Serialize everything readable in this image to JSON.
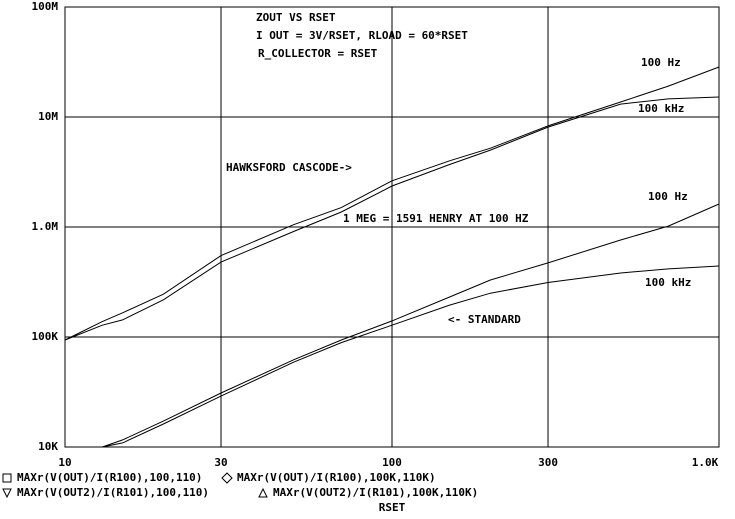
{
  "chart_data": {
    "type": "line",
    "x_label": "RSET",
    "xscale": "log",
    "yscale": "log",
    "grid": true,
    "xlim": [
      10,
      1000
    ],
    "xticks": [
      10,
      30,
      100,
      300,
      {
        "value": 1000,
        "label": "1.0K"
      }
    ],
    "ylim": [
      10000,
      100000000
    ],
    "yticks": [
      {
        "value": 10000,
        "label": "10K"
      },
      {
        "value": 100000,
        "label": "100K"
      },
      {
        "value": 1000000,
        "label": "1.0M"
      },
      {
        "value": 10000000,
        "label": "10M"
      },
      {
        "value": 100000000,
        "label": "100M"
      }
    ],
    "x": [
      10,
      13,
      15,
      20,
      30,
      50,
      70,
      100,
      150,
      200,
      300,
      500,
      700,
      1000
    ],
    "series": [
      {
        "name": "MAXr(V(OUT)/I(R100),100,110)",
        "color": "#000000",
        "values": [
          94000,
          138000,
          166000,
          245000,
          550000,
          1050000,
          1500000,
          2630000,
          4000000,
          5200000,
          8300000,
          13700000,
          19100000,
          28500000
        ]
      },
      {
        "name": "MAXr(V(OUT)/I(R100),100K,110K)",
        "color": "#000000",
        "values": [
          94000,
          128000,
          143000,
          218000,
          480000,
          910000,
          1370000,
          2360000,
          3700000,
          5000000,
          8100000,
          13100000,
          14600000,
          15200000
        ]
      },
      {
        "name": "MAXr(V(OUT2)/I(R101),100,110)",
        "color": "#000000",
        "values": [
          null,
          10000,
          11600,
          17200,
          31000,
          62000,
          94000,
          140000,
          231000,
          330000,
          472000,
          762000,
          1020000,
          1620000
        ]
      },
      {
        "name": "MAXr(V(OUT2)/I(R101),100K,110K)",
        "color": "#000000",
        "values": [
          null,
          10000,
          10900,
          16200,
          29000,
          59000,
          89000,
          128000,
          195000,
          250000,
          313000,
          382000,
          416000,
          442000
        ]
      }
    ],
    "annotations": [
      "ZOUT VS RSET",
      "I OUT = 3V/RSET, RLOAD = 60*RSET",
      "R_COLLECTOR = RSET",
      "HAWKSFORD CASCODE->",
      "1 MEG = 1591 HENRY AT 100 HZ",
      "<- STANDARD",
      "100 Hz",
      "100 kHz",
      "100 Hz",
      "100 kHz"
    ]
  }
}
